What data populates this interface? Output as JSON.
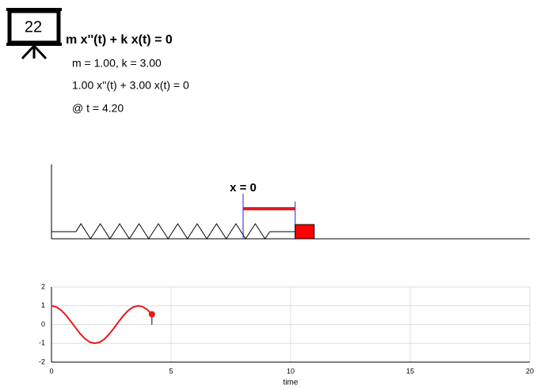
{
  "header": {
    "badge": "22",
    "equation": "m x''(t) + k x(t) = 0",
    "params": "m = 1.00, k = 3.00",
    "instance": "1.00 x''(t) + 3.00 x(t) = 0",
    "time": "@ t = 4.20"
  },
  "spring": {
    "label": "x = 0"
  },
  "chart_data": {
    "type": "line",
    "x_label": "time",
    "x": [
      0,
      0.2,
      0.4,
      0.6,
      0.8,
      1.0,
      1.2,
      1.4,
      1.6,
      1.8,
      2.0,
      2.2,
      2.4,
      2.6,
      2.8,
      3.0,
      3.2,
      3.4,
      3.6,
      3.8,
      4.0,
      4.2
    ],
    "series": [
      {
        "color": "#e8191d",
        "values": [
          1,
          0.941,
          0.769,
          0.507,
          0.184,
          -0.161,
          -0.487,
          -0.754,
          -0.932,
          -1.0,
          -0.948,
          -0.79,
          -0.531,
          -0.209,
          0.137,
          0.465,
          0.738,
          0.923,
          0.999,
          0.956,
          0.799,
          0.548
        ]
      }
    ],
    "xlim": [
      0,
      20
    ],
    "ylim": [
      -2,
      2
    ],
    "xticks": [
      0,
      5,
      10,
      15,
      20
    ],
    "yticks": [
      -2,
      -1,
      0,
      1,
      2
    ],
    "grid": true
  }
}
